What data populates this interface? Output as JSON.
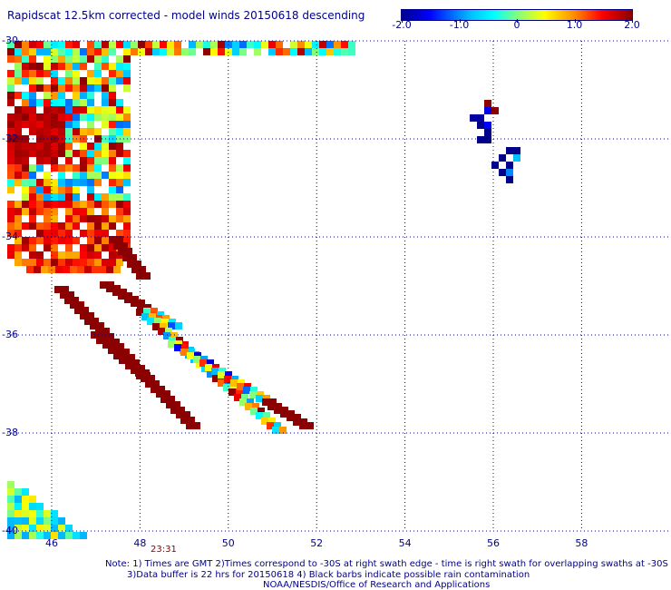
{
  "title": "Rapidscat 12.5km corrected - model winds 20150618 descending",
  "colorbar": {
    "labels": [
      "-2.0",
      "-1.0",
      "0",
      "1.0",
      "2.0"
    ],
    "values": [
      -2.0,
      -1.0,
      0,
      1.0,
      2.0
    ]
  },
  "axes": {
    "lat_labels": [
      "-30",
      "-32",
      "-34",
      "-36",
      "-38",
      "-40"
    ],
    "lon_labels": [
      "46",
      "48",
      "50",
      "52",
      "54",
      "56",
      "58"
    ]
  },
  "time_label": "23:31",
  "notes": [
    "Note: 1) Times are GMT 2)Times correspond to -30S at right swath edge - time is right swath for overlapping swaths at -30S",
    "3)Data buffer is 22 hrs for 20150618 4) Black barbs indicate possible rain contamination",
    "NOAA/NESDIS/Office of Research and Applications"
  ],
  "chart_data": {
    "type": "heatmap",
    "title": "Rapidscat 12.5km corrected - model winds 20150618 descending",
    "xlabel": "",
    "ylabel": "",
    "xlim": [
      45,
      59.5
    ],
    "ylim": [
      -40,
      -30
    ],
    "xticks": [
      46,
      48,
      50,
      52,
      54,
      56,
      58
    ],
    "yticks": [
      -30,
      -32,
      -34,
      -36,
      -38,
      -40
    ],
    "color_range": [
      -2.0,
      2.0
    ],
    "grid": true,
    "colorbar_position": "top-right"
  }
}
